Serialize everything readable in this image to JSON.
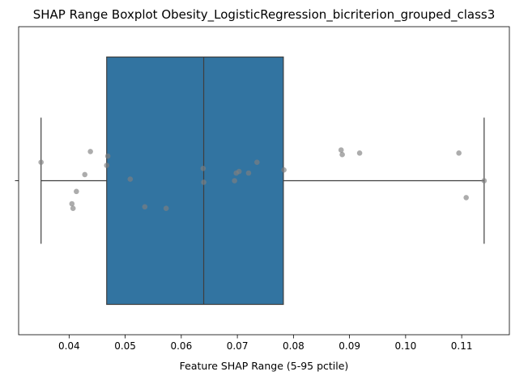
{
  "chart_data": {
    "type": "boxplot",
    "title": "SHAP Range Boxplot Obesity_LogisticRegression_bicriterion_grouped_class3",
    "xlabel": "Feature SHAP Range (5-95 pctile)",
    "ylabel": "",
    "xlim": [
      0.031,
      0.1185
    ],
    "xticks": [
      "0.04",
      "0.05",
      "0.06",
      "0.07",
      "0.08",
      "0.09",
      "0.10",
      "0.11"
    ],
    "xtick_values": [
      0.04,
      0.05,
      0.06,
      0.07,
      0.08,
      0.09,
      0.1,
      0.11
    ],
    "grid": false,
    "box": {
      "whisker_low": 0.035,
      "q1": 0.0467,
      "median": 0.064,
      "q3": 0.0782,
      "whisker_high": 0.114,
      "color": "#3274a1"
    },
    "points": [
      {
        "x": 0.035,
        "jitter": -0.12
      },
      {
        "x": 0.0405,
        "jitter": 0.15
      },
      {
        "x": 0.0407,
        "jitter": 0.18
      },
      {
        "x": 0.0413,
        "jitter": 0.07
      },
      {
        "x": 0.0428,
        "jitter": -0.04
      },
      {
        "x": 0.0438,
        "jitter": -0.19
      },
      {
        "x": 0.0467,
        "jitter": -0.1
      },
      {
        "x": 0.0469,
        "jitter": -0.16
      },
      {
        "x": 0.0509,
        "jitter": -0.01
      },
      {
        "x": 0.0535,
        "jitter": 0.17
      },
      {
        "x": 0.0573,
        "jitter": 0.18
      },
      {
        "x": 0.0639,
        "jitter": -0.08
      },
      {
        "x": 0.064,
        "jitter": 0.01
      },
      {
        "x": 0.0695,
        "jitter": 0.0
      },
      {
        "x": 0.0698,
        "jitter": -0.05
      },
      {
        "x": 0.0703,
        "jitter": -0.06
      },
      {
        "x": 0.072,
        "jitter": -0.05
      },
      {
        "x": 0.0735,
        "jitter": -0.12
      },
      {
        "x": 0.0783,
        "jitter": -0.07
      },
      {
        "x": 0.0885,
        "jitter": -0.2
      },
      {
        "x": 0.0887,
        "jitter": -0.17
      },
      {
        "x": 0.0918,
        "jitter": -0.18
      },
      {
        "x": 0.1095,
        "jitter": -0.18
      },
      {
        "x": 0.1108,
        "jitter": 0.11
      },
      {
        "x": 0.114,
        "jitter": 0.0
      }
    ],
    "point_color": "#808080"
  }
}
